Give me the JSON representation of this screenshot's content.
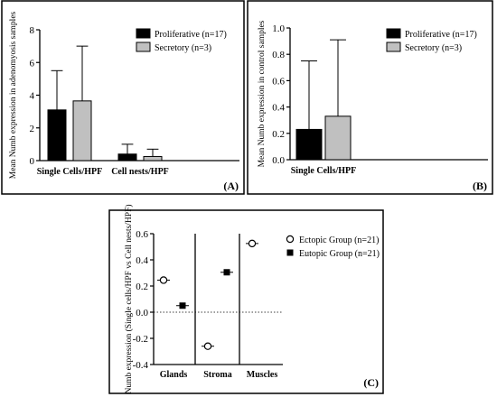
{
  "chart_data": [
    {
      "id": "A",
      "type": "bar",
      "panel_label": "(A)",
      "ylabel": "Mean Numb expression in adenomyosis samples",
      "ylim": [
        0,
        8
      ],
      "yticks": [
        "0",
        "2",
        "4",
        "6",
        "8"
      ],
      "categories": [
        "Single Cells/HPF",
        "Cell nests/HPF"
      ],
      "error_bars": "upper",
      "legend_position": "top-right",
      "series": [
        {
          "name": "Proliferative (n=17)",
          "color": "#000000",
          "values": [
            3.1,
            0.4
          ],
          "errors": [
            2.4,
            0.6
          ]
        },
        {
          "name": "Secretory (n=3)",
          "color": "#c0c0c0",
          "values": [
            3.65,
            0.25
          ],
          "errors": [
            3.35,
            0.45
          ]
        }
      ]
    },
    {
      "id": "B",
      "type": "bar",
      "panel_label": "(B)",
      "ylabel": "Mean Numb expression in control samples",
      "ylim": [
        0,
        1.0
      ],
      "yticks": [
        "0.0",
        "0.2",
        "0.4",
        "0.6",
        "0.8",
        "1.0"
      ],
      "categories": [
        "Single Cells/HPF"
      ],
      "error_bars": "upper",
      "legend_position": "top-right",
      "series": [
        {
          "name": "Proliferative (n=17)",
          "color": "#000000",
          "values": [
            0.23
          ],
          "errors": [
            0.52
          ]
        },
        {
          "name": "Secretory (n=3)",
          "color": "#c0c0c0",
          "values": [
            0.33
          ],
          "errors": [
            0.58
          ]
        }
      ]
    },
    {
      "id": "C",
      "type": "scatter",
      "panel_label": "(C)",
      "ylabel": "Numb expression (Single cells/HPF vs Cell nests/HPF)",
      "ylim": [
        -0.4,
        0.6
      ],
      "yticks": [
        "-0.4",
        "-0.2",
        "0.0",
        "0.2",
        "0.4",
        "0.6"
      ],
      "categories": [
        "Glands",
        "Stroma",
        "Muscles"
      ],
      "reference_line": 0,
      "legend_position": "top-right",
      "series": [
        {
          "name": "Ectopic Group (n=21)",
          "marker": "open-circle",
          "points": [
            {
              "category": "Glands",
              "y": 0.245
            },
            {
              "category": "Stroma",
              "y": -0.26
            },
            {
              "category": "Muscles",
              "y": 0.525
            }
          ]
        },
        {
          "name": "Eutopic Group (n=21)",
          "marker": "filled-square",
          "points": [
            {
              "category": "Glands",
              "y": 0.05
            },
            {
              "category": "Stroma",
              "y": 0.305
            }
          ]
        }
      ]
    }
  ]
}
